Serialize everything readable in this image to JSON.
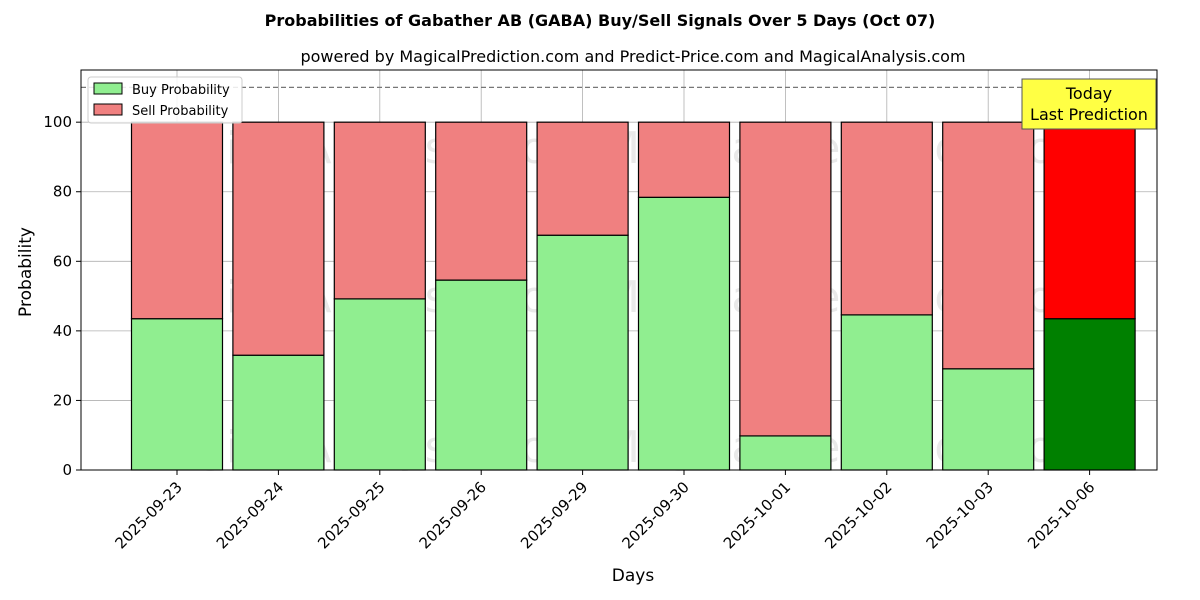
{
  "chart_data": {
    "type": "bar",
    "stacked": true,
    "title": "Probabilities of Gabather AB (GABA) Buy/Sell Signals Over 5 Days (Oct 07)",
    "subtitle": "powered by MagicalPrediction.com and Predict-Price.com and MagicalAnalysis.com",
    "xlabel": "Days",
    "ylabel": "Probability",
    "ylim": [
      0,
      115
    ],
    "yticks": [
      0,
      20,
      40,
      60,
      80,
      100
    ],
    "grid": true,
    "legend_position": "top-left",
    "reference_line": 110,
    "categories": [
      "2025-09-23",
      "2025-09-24",
      "2025-09-25",
      "2025-09-26",
      "2025-09-29",
      "2025-09-30",
      "2025-10-01",
      "2025-10-02",
      "2025-10-03",
      "2025-10-06"
    ],
    "series": [
      {
        "name": "Buy Probability",
        "color": "#90EE90",
        "highlight_color": "#008000",
        "values": [
          43.5,
          33.0,
          49.2,
          54.6,
          67.5,
          78.4,
          9.8,
          44.6,
          29.1,
          43.5
        ]
      },
      {
        "name": "Sell Probability",
        "color": "#F08080",
        "highlight_color": "#FF0000",
        "values": [
          56.5,
          67.0,
          50.8,
          45.4,
          32.5,
          21.6,
          90.2,
          55.4,
          70.9,
          56.5
        ]
      }
    ],
    "highlight_index": 9,
    "annotation": {
      "lines": [
        "Today",
        "Last Prediction"
      ],
      "color": "#FFFF44"
    },
    "watermarks": [
      "MagicalAnalysis.com",
      "MagicalPrediction.com",
      "MagicalAnalysis.com",
      "MagicalPrediction.com",
      "MagicalAnalysis.com",
      "MagicalPrediction.com"
    ]
  }
}
